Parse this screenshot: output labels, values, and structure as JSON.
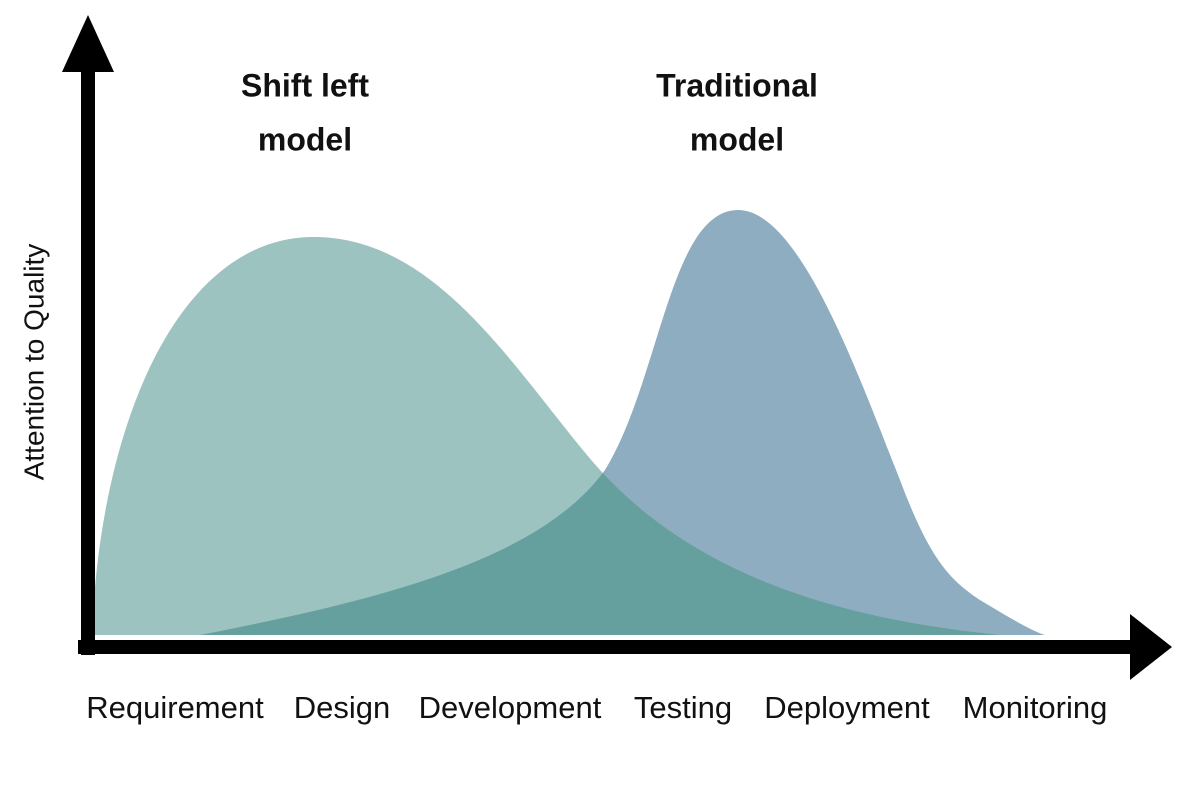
{
  "axis_label": "Attention to Quality",
  "models": [
    {
      "lines": [
        "Shift left",
        "model"
      ]
    },
    {
      "lines": [
        "Traditional",
        "model"
      ]
    }
  ],
  "phases": [
    "Requirement",
    "Design",
    "Development",
    "Testing",
    "Deployment",
    "Monitoring"
  ]
}
